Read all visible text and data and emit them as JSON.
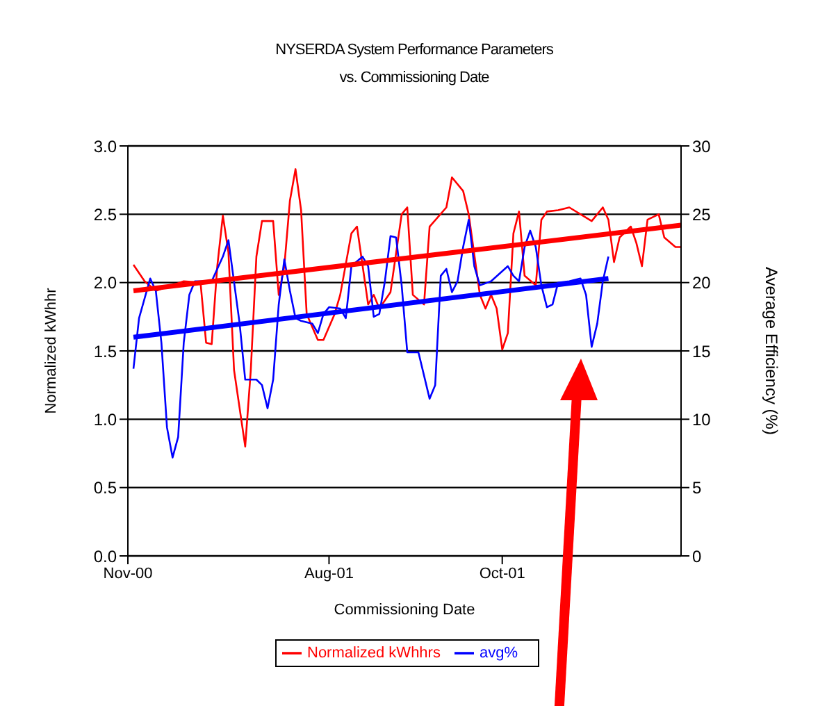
{
  "chart_data": {
    "type": "line",
    "title": "NYSERDA System Performance Parameters\nvs. Commissioning Date",
    "xlabel": "Commissioning Date",
    "ylabel": "Normalized kWhhr",
    "y2label": "Average Efficiency (%)",
    "categories": [
      "Nov-00",
      null,
      null,
      null,
      null,
      null,
      null,
      null,
      null,
      null,
      null,
      null,
      null,
      null,
      null,
      null,
      null,
      null,
      null,
      null,
      null,
      null,
      null,
      null,
      null,
      null,
      null,
      null,
      null,
      null,
      null,
      null,
      null,
      null,
      null,
      null,
      "Aug-01",
      null,
      null,
      null,
      null,
      null,
      null,
      null,
      null,
      null,
      null,
      null,
      null,
      null,
      null,
      null,
      null,
      null,
      null,
      null,
      null,
      null,
      null,
      null,
      null,
      null,
      null,
      null,
      null,
      null,
      null,
      "Oct-01",
      null,
      null,
      null,
      null,
      null,
      null,
      null,
      null,
      null,
      null,
      null,
      null,
      null,
      null,
      null,
      null,
      null,
      null,
      null,
      null,
      null,
      null,
      null,
      null,
      null,
      null,
      null,
      null,
      null,
      null,
      null,
      null
    ],
    "ylim": [
      0,
      3
    ],
    "yticks": [
      {
        "value": 0,
        "label": "0.0"
      },
      {
        "value": 0.5,
        "label": "0.5"
      },
      {
        "value": 1,
        "label": "1.0"
      },
      {
        "value": 1.5,
        "label": "1.5"
      },
      {
        "value": 2,
        "label": "2.0"
      },
      {
        "value": 2.5,
        "label": "2.5"
      },
      {
        "value": 3,
        "label": "3.0"
      }
    ],
    "y2lim": [
      0,
      30
    ],
    "y2ticks": [
      0,
      5,
      10,
      15,
      20,
      25,
      30
    ],
    "grid": "y",
    "legend": "bottom",
    "marker": "none",
    "line_style": "solid",
    "series": [
      {
        "name": "Normalized kWhhrs",
        "color": "#ff0000",
        "values": [
          null,
          2.13,
          null,
          2.01,
          null,
          1.94,
          null,
          null,
          null,
          null,
          2.01,
          null,
          null,
          2.0,
          1.56,
          1.55,
          2.12,
          2.49,
          2.22,
          1.36,
          null,
          0.8,
          1.36,
          2.19,
          2.45,
          null,
          2.45,
          1.91,
          2.12,
          2.6,
          2.83,
          2.53,
          1.77,
          null,
          1.58,
          1.58,
          null,
          1.77,
          1.91,
          null,
          2.36,
          2.41,
          null,
          1.84,
          1.91,
          1.81,
          null,
          1.93,
          null,
          2.5,
          2.55,
          1.91,
          null,
          1.84,
          2.41,
          null,
          null,
          2.55,
          2.77,
          null,
          2.67,
          2.5,
          null,
          1.91,
          1.81,
          1.91,
          1.81,
          1.51,
          1.63,
          2.36,
          2.52,
          2.05,
          null,
          1.98,
          2.46,
          2.52,
          null,
          2.53,
          null,
          2.55,
          null,
          null,
          null,
          2.45,
          null,
          2.55,
          2.46,
          2.15,
          2.33,
          null,
          2.41,
          2.29,
          2.12,
          2.46,
          null,
          2.5,
          2.33,
          null,
          2.26,
          2.26
        ]
      },
      {
        "name": "avg%",
        "color": "#0000ff",
        "axis": "y2",
        "values": [
          null,
          13.7,
          17.4,
          null,
          20.3,
          19.4,
          15.6,
          9.4,
          7.2,
          8.7,
          15.6,
          19.1,
          20.1,
          null,
          null,
          20.1,
          null,
          21.9,
          23.1,
          null,
          17.0,
          12.9,
          null,
          12.9,
          12.5,
          10.8,
          12.9,
          18.4,
          21.7,
          19.4,
          17.4,
          17.2,
          null,
          17.0,
          16.3,
          17.7,
          18.2,
          null,
          18.1,
          17.4,
          21.2,
          null,
          21.9,
          21.2,
          17.5,
          17.7,
          20.1,
          23.4,
          23.3,
          19.8,
          14.9,
          null,
          14.9,
          null,
          11.5,
          12.5,
          20.5,
          21.0,
          19.3,
          20.1,
          22.6,
          24.6,
          21.2,
          19.8,
          null,
          20.1,
          null,
          null,
          21.2,
          20.5,
          20.1,
          22.6,
          23.8,
          22.6,
          19.8,
          18.2,
          18.4,
          20.0,
          null,
          20.1,
          null,
          20.3,
          19.1,
          15.3,
          17.0,
          20.1,
          21.9,
          null,
          null,
          null,
          null,
          null,
          null,
          null,
          null,
          null,
          null,
          null,
          null,
          null
        ]
      },
      {
        "type": "line",
        "color": "#ff0000",
        "values": [
          null,
          1.94,
          null,
          null,
          null,
          null,
          null,
          null,
          null,
          null,
          null,
          null,
          null,
          null,
          null,
          null,
          null,
          null,
          null,
          null,
          null,
          null,
          null,
          null,
          null,
          null,
          null,
          null,
          null,
          null,
          null,
          null,
          null,
          null,
          null,
          null,
          null,
          null,
          null,
          null,
          null,
          null,
          null,
          null,
          null,
          null,
          null,
          null,
          null,
          null,
          null,
          null,
          null,
          null,
          null,
          null,
          null,
          null,
          null,
          null,
          null,
          null,
          null,
          null,
          null,
          null,
          null,
          null,
          null,
          null,
          null,
          null,
          null,
          null,
          null,
          null,
          null,
          null,
          null,
          null,
          null,
          null,
          null,
          null,
          null,
          null,
          null,
          null,
          null,
          null,
          null,
          null,
          null,
          null,
          null,
          null,
          null,
          null,
          null,
          2.42
        ]
      },
      {
        "type": "line",
        "color": "#0000ff",
        "axis": "y2",
        "values": [
          null,
          16.0,
          null,
          null,
          null,
          null,
          null,
          null,
          null,
          null,
          null,
          null,
          null,
          null,
          null,
          null,
          null,
          null,
          null,
          null,
          null,
          null,
          null,
          null,
          null,
          null,
          null,
          null,
          null,
          null,
          null,
          null,
          null,
          null,
          null,
          null,
          null,
          null,
          null,
          null,
          null,
          null,
          null,
          null,
          null,
          null,
          null,
          null,
          null,
          null,
          null,
          null,
          null,
          null,
          null,
          null,
          null,
          null,
          null,
          null,
          null,
          null,
          null,
          null,
          null,
          null,
          null,
          null,
          null,
          null,
          null,
          null,
          null,
          null,
          null,
          null,
          null,
          null,
          null,
          null,
          null,
          null,
          null,
          null,
          null,
          null,
          20.3,
          null,
          null,
          null,
          null,
          null,
          null,
          null,
          null,
          null,
          null,
          null,
          null,
          null
        ]
      }
    ]
  }
}
